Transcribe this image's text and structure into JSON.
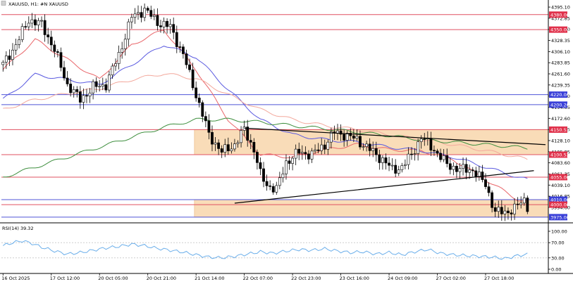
{
  "chart_data": [
    {
      "type": "candlestick",
      "header": "XAUUSD, H1:  #N XAUUSD",
      "y_ticks": [
        "4395.10",
        "4372.85",
        "4350.60",
        "4328.35",
        "4306.10",
        "4283.85",
        "4261.60",
        "4239.35",
        "4217.10",
        "4194.85",
        "4172.60",
        "4150.35",
        "4128.10",
        "4105.85",
        "4083.60",
        "4061.35",
        "4039.10",
        "4016.85",
        "3994.60"
      ],
      "y_range": [
        3965,
        4398
      ],
      "x_ticks": [
        "16 Oct 2025",
        "17 Oct 12:00",
        "20 Oct 05:00",
        "20 Oct 21:00",
        "21 Oct 14:00",
        "22 Oct 07:00",
        "22 Oct 23:00",
        "23 Oct 16:00",
        "24 Oct 09:00",
        "27 Oct 02:00",
        "27 Oct 18:00"
      ],
      "x_tick_index": [
        0,
        15,
        30,
        45,
        60,
        75,
        90,
        105,
        120,
        135,
        150
      ],
      "num_bars": 170,
      "price_path": [
        [
          0,
          4280
        ],
        [
          4,
          4320
        ],
        [
          8,
          4370
        ],
        [
          12,
          4360
        ],
        [
          16,
          4310
        ],
        [
          20,
          4240
        ],
        [
          24,
          4210
        ],
        [
          28,
          4235
        ],
        [
          32,
          4240
        ],
        [
          36,
          4300
        ],
        [
          40,
          4375
        ],
        [
          44,
          4390
        ],
        [
          48,
          4365
        ],
        [
          52,
          4355
        ],
        [
          56,
          4300
        ],
        [
          60,
          4220
        ],
        [
          64,
          4140
        ],
        [
          68,
          4105
        ],
        [
          72,
          4120
        ],
        [
          75,
          4150
        ],
        [
          78,
          4110
        ],
        [
          80,
          4060
        ],
        [
          82,
          4040
        ],
        [
          85,
          4030
        ],
        [
          88,
          4085
        ],
        [
          92,
          4105
        ],
        [
          96,
          4100
        ],
        [
          100,
          4120
        ],
        [
          103,
          4145
        ],
        [
          106,
          4140
        ],
        [
          110,
          4130
        ],
        [
          114,
          4110
        ],
        [
          118,
          4090
        ],
        [
          121,
          4070
        ],
        [
          124,
          4075
        ],
        [
          127,
          4100
        ],
        [
          130,
          4135
        ],
        [
          134,
          4110
        ],
        [
          138,
          4080
        ],
        [
          142,
          4070
        ],
        [
          146,
          4070
        ],
        [
          150,
          4040
        ],
        [
          153,
          3985
        ],
        [
          156,
          3985
        ],
        [
          159,
          3992
        ],
        [
          162,
          4010
        ],
        [
          163,
          3997
        ]
      ],
      "horizontal_levels": [
        {
          "value": 4380,
          "label": "4380.00",
          "color": "#e05060",
          "label_bg": "#e0304a"
        },
        {
          "value": 4350,
          "label": "4350.00",
          "color": "#e05060",
          "label_bg": "#e0304a"
        },
        {
          "value": 4220,
          "label": "4220.00",
          "color": "#4f55d8",
          "label_bg": "#3a40d8"
        },
        {
          "value": 4200,
          "label": "4200.20",
          "color": "#4f55d8",
          "label_bg": "#3a40d8"
        },
        {
          "value": 4150,
          "label": "4150.53",
          "color": "#e05060",
          "label_bg": "#e0304a"
        },
        {
          "value": 4100,
          "label": "4100.52",
          "color": "#e05060",
          "label_bg": "#e0304a"
        },
        {
          "value": 4055,
          "label": "4055.00",
          "color": "#e05060",
          "label_bg": "#e0304a"
        },
        {
          "value": 4010,
          "label": "4010.00",
          "color": "#4f55d8",
          "label_bg": "#3a40d8"
        },
        {
          "value": 4000,
          "label": "4000.00",
          "color": "#e05060",
          "label_bg": "#e0304a"
        },
        {
          "value": 3975,
          "label": "3975.00",
          "color": "#4f55d8",
          "label_bg": "#3a40d8"
        }
      ],
      "zones": [
        {
          "from_index": 60,
          "to_index": 170,
          "low": 4100,
          "high": 4150,
          "color": "#f9dcb8"
        },
        {
          "from_index": 60,
          "to_index": 170,
          "low": 3975,
          "high": 4010,
          "color": "#f9dcb8"
        }
      ],
      "trendlines": [
        {
          "x1": 75,
          "y1": 4153,
          "x2": 170,
          "y2": 4120,
          "color": "#000000"
        },
        {
          "x1": 72,
          "y1": 4003,
          "x2": 165,
          "y2": 4068,
          "color": "#000000"
        }
      ],
      "moving_averages": [
        {
          "color": "#e9666a",
          "points": [
            [
              0,
              4270
            ],
            [
              10,
              4330
            ],
            [
              20,
              4290
            ],
            [
              30,
              4250
            ],
            [
              40,
              4320
            ],
            [
              50,
              4350
            ],
            [
              60,
              4270
            ],
            [
              70,
              4170
            ],
            [
              80,
              4100
            ],
            [
              90,
              4095
            ],
            [
              100,
              4110
            ],
            [
              110,
              4120
            ],
            [
              120,
              4110
            ],
            [
              130,
              4108
            ],
            [
              140,
              4090
            ],
            [
              150,
              4050
            ],
            [
              160,
              4010
            ],
            [
              163,
              4005
            ]
          ]
        },
        {
          "color": "#5a5ae0",
          "points": [
            [
              0,
              4210
            ],
            [
              10,
              4260
            ],
            [
              20,
              4250
            ],
            [
              30,
              4240
            ],
            [
              40,
              4280
            ],
            [
              50,
              4320
            ],
            [
              60,
              4295
            ],
            [
              70,
              4230
            ],
            [
              80,
              4170
            ],
            [
              90,
              4140
            ],
            [
              100,
              4130
            ],
            [
              110,
              4125
            ],
            [
              120,
              4115
            ],
            [
              130,
              4108
            ],
            [
              140,
              4095
            ],
            [
              150,
              4075
            ],
            [
              160,
              4055
            ],
            [
              163,
              4050
            ]
          ]
        },
        {
          "color": "#f3a89c",
          "points": [
            [
              0,
              4190
            ],
            [
              10,
              4210
            ],
            [
              20,
              4222
            ],
            [
              30,
              4232
            ],
            [
              40,
              4250
            ],
            [
              50,
              4262
            ],
            [
              60,
              4252
            ],
            [
              70,
              4220
            ],
            [
              80,
              4190
            ],
            [
              90,
              4170
            ],
            [
              100,
              4158
            ],
            [
              110,
              4150
            ],
            [
              120,
              4140
            ],
            [
              130,
              4130
            ],
            [
              140,
              4120
            ],
            [
              150,
              4108
            ],
            [
              160,
              4095
            ],
            [
              163,
              4090
            ]
          ]
        },
        {
          "color": "#3f8f3f",
          "points": [
            [
              0,
              4055
            ],
            [
              10,
              4075
            ],
            [
              20,
              4095
            ],
            [
              30,
              4115
            ],
            [
              40,
              4135
            ],
            [
              50,
              4155
            ],
            [
              60,
              4170
            ],
            [
              70,
              4170
            ],
            [
              80,
              4165
            ],
            [
              90,
              4158
            ],
            [
              100,
              4152
            ],
            [
              110,
              4145
            ],
            [
              120,
              4138
            ],
            [
              130,
              4130
            ],
            [
              140,
              4125
            ],
            [
              150,
              4120
            ],
            [
              160,
              4115
            ],
            [
              163,
              4113
            ]
          ]
        }
      ]
    },
    {
      "type": "line",
      "label": "RSI(14) 39.32",
      "y_ticks": [
        "100.00",
        "70.00",
        "30.00",
        "0.00"
      ],
      "y_range": [
        0,
        100
      ],
      "color": "#6aaeea",
      "points": [
        [
          0,
          62
        ],
        [
          3,
          70
        ],
        [
          6,
          75
        ],
        [
          9,
          68
        ],
        [
          12,
          58
        ],
        [
          16,
          48
        ],
        [
          20,
          40
        ],
        [
          24,
          44
        ],
        [
          28,
          50
        ],
        [
          32,
          56
        ],
        [
          36,
          60
        ],
        [
          40,
          66
        ],
        [
          44,
          62
        ],
        [
          48,
          55
        ],
        [
          52,
          50
        ],
        [
          56,
          45
        ],
        [
          60,
          38
        ],
        [
          64,
          32
        ],
        [
          68,
          30
        ],
        [
          72,
          34
        ],
        [
          76,
          40
        ],
        [
          80,
          46
        ],
        [
          84,
          42
        ],
        [
          88,
          48
        ],
        [
          92,
          52
        ],
        [
          96,
          50
        ],
        [
          100,
          54
        ],
        [
          104,
          48
        ],
        [
          108,
          44
        ],
        [
          112,
          46
        ],
        [
          116,
          40
        ],
        [
          120,
          44
        ],
        [
          124,
          38
        ],
        [
          128,
          46
        ],
        [
          132,
          52
        ],
        [
          136,
          42
        ],
        [
          140,
          38
        ],
        [
          144,
          36
        ],
        [
          148,
          34
        ],
        [
          152,
          32
        ],
        [
          156,
          28
        ],
        [
          160,
          36
        ],
        [
          163,
          39
        ]
      ]
    }
  ]
}
